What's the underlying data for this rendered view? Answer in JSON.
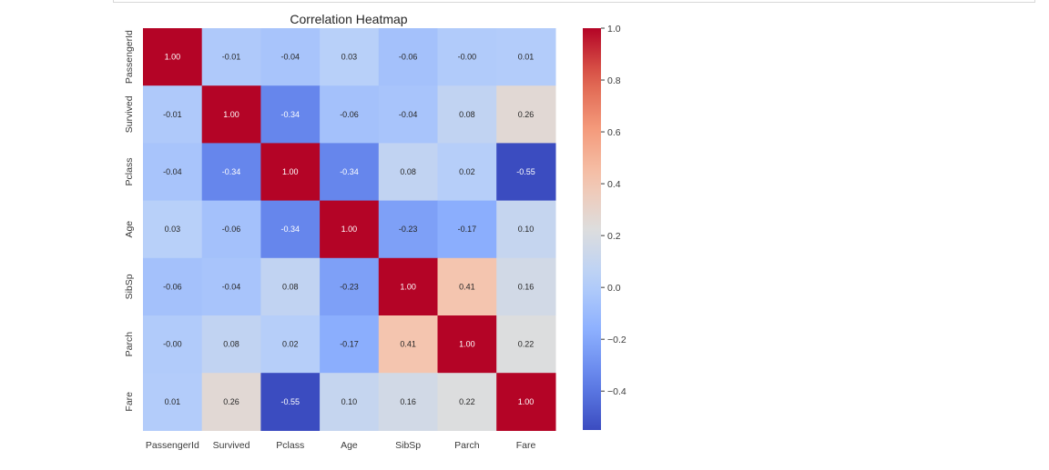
{
  "chart_data": {
    "type": "heatmap",
    "title": "Correlation Heatmap",
    "row_labels": [
      "PassengerId",
      "Survived",
      "Pclass",
      "Age",
      "SibSp",
      "Parch",
      "Fare"
    ],
    "col_labels": [
      "PassengerId",
      "Survived",
      "Pclass",
      "Age",
      "SibSp",
      "Parch",
      "Fare"
    ],
    "values": [
      [
        1.0,
        -0.01,
        -0.04,
        0.03,
        -0.06,
        -0.0,
        0.01
      ],
      [
        -0.01,
        1.0,
        -0.34,
        -0.06,
        -0.04,
        0.08,
        0.26
      ],
      [
        -0.04,
        -0.34,
        1.0,
        -0.34,
        0.08,
        0.02,
        -0.55
      ],
      [
        0.03,
        -0.06,
        -0.34,
        1.0,
        -0.23,
        -0.17,
        0.1
      ],
      [
        -0.06,
        -0.04,
        0.08,
        -0.23,
        1.0,
        0.41,
        0.16
      ],
      [
        -0.0,
        0.08,
        0.02,
        -0.17,
        0.41,
        1.0,
        0.22
      ],
      [
        0.01,
        0.26,
        -0.55,
        0.1,
        0.16,
        0.22,
        1.0
      ]
    ],
    "annotations": [
      [
        "1.00",
        "-0.01",
        "-0.04",
        "0.03",
        "-0.06",
        "-0.00",
        "0.01"
      ],
      [
        "-0.01",
        "1.00",
        "-0.34",
        "-0.06",
        "-0.04",
        "0.08",
        "0.26"
      ],
      [
        "-0.04",
        "-0.34",
        "1.00",
        "-0.34",
        "0.08",
        "0.02",
        "-0.55"
      ],
      [
        "0.03",
        "-0.06",
        "-0.34",
        "1.00",
        "-0.23",
        "-0.17",
        "0.10"
      ],
      [
        "-0.06",
        "-0.04",
        "0.08",
        "-0.23",
        "1.00",
        "0.41",
        "0.16"
      ],
      [
        "-0.00",
        "0.08",
        "0.02",
        "-0.17",
        "0.41",
        "1.00",
        "0.22"
      ],
      [
        "0.01",
        "0.26",
        "-0.55",
        "0.10",
        "0.16",
        "0.22",
        "1.00"
      ]
    ],
    "colormap": "coolwarm",
    "vmin": -0.55,
    "vmax": 1.0,
    "colorbar": {
      "ticks": [
        1.0,
        0.8,
        0.6,
        0.4,
        0.2,
        0.0,
        -0.2,
        -0.4
      ],
      "tick_labels": [
        "1.0",
        "0.8",
        "0.6",
        "0.4",
        "0.2",
        "0.0",
        "−0.2",
        "−0.4"
      ]
    },
    "colors": {
      "low": "#3b4cc0",
      "mid": "#dddddd",
      "high": "#b40426"
    }
  }
}
